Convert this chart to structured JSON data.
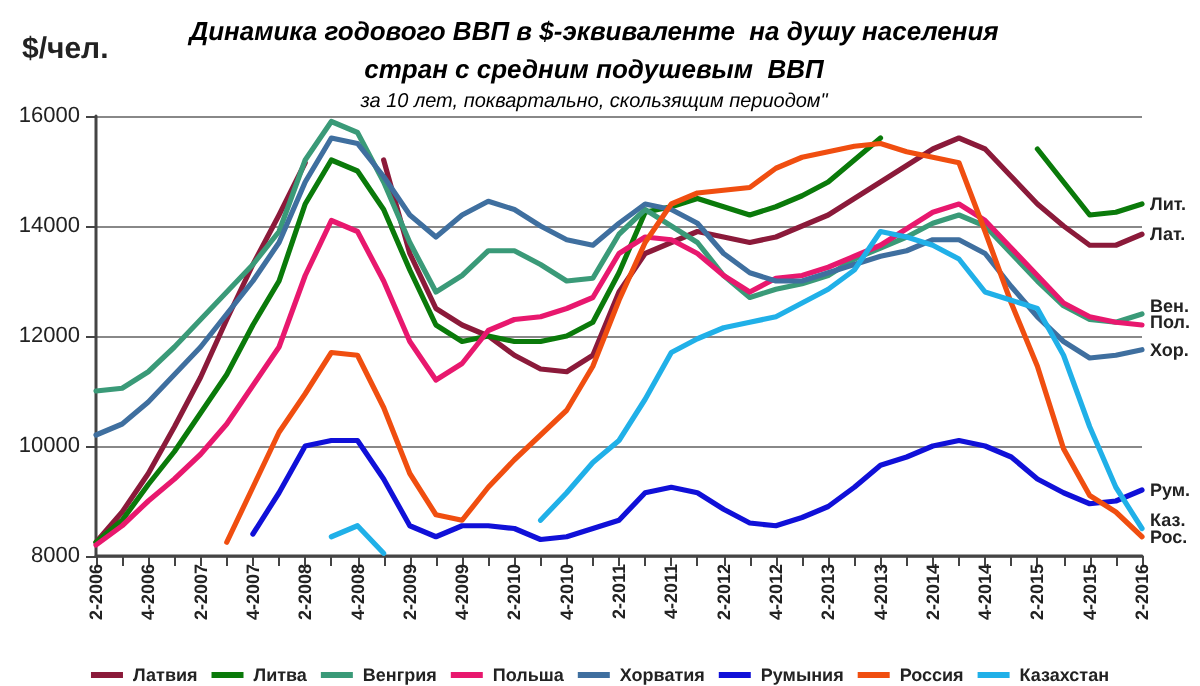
{
  "chart_data": {
    "type": "line",
    "title": "Динамика годового ВВП в $-эквиваленте  на душу населения\nстран с средним подушевым  ВВП",
    "subtitle": "за 10 лет, поквартально, скользящим периодом\"",
    "ylabel": "$/чел.",
    "categories": [
      "2-2006",
      null,
      "4-2006",
      null,
      "2-2007",
      null,
      "4-2007",
      null,
      "2-2008",
      null,
      "4-2008",
      null,
      "2-2009",
      null,
      "4-2009",
      null,
      "2-2010",
      null,
      "4-2010",
      null,
      "2-2011",
      null,
      "4-2011",
      null,
      "2-2012",
      null,
      "4-2012",
      null,
      "2-2013",
      null,
      "4-2013",
      null,
      "2-2014",
      null,
      "4-2014",
      null,
      "2-2015",
      null,
      "4-2015",
      null,
      "2-2016"
    ],
    "series": [
      {
        "name": "Латвия",
        "color": "#8b1a3a",
        "values": [
          8250,
          8800,
          9500,
          10350,
          11250,
          12300,
          13300,
          14200,
          15150,
          null,
          null,
          15200,
          13500,
          12500,
          12200,
          12000,
          11650,
          11400,
          11350,
          11650,
          12800,
          13500,
          13700,
          13900,
          13800,
          13700,
          13800,
          14000,
          14200,
          14500,
          14800,
          15100,
          15400,
          15600,
          15400,
          14900,
          14400,
          14000,
          13650,
          13650,
          13850
        ]
      },
      {
        "name": "Литва",
        "color": "#0a7a0a",
        "values": [
          8250,
          8650,
          9300,
          9900,
          10600,
          11300,
          12200,
          13000,
          14400,
          15200,
          15000,
          14300,
          13200,
          12200,
          11900,
          12000,
          11900,
          11900,
          12000,
          12250,
          13150,
          14250,
          14350,
          14500,
          14350,
          14200,
          14350,
          14550,
          14800,
          15200,
          15600,
          null,
          null,
          null,
          null,
          null,
          15400,
          14800,
          14200,
          14250,
          14400
        ]
      },
      {
        "name": "Венгрия",
        "color": "#3a9a78",
        "values": [
          11000,
          11050,
          11350,
          11800,
          12300,
          12800,
          13300,
          13900,
          15200,
          15900,
          15700,
          14800,
          13700,
          12800,
          13100,
          13550,
          13550,
          13300,
          13000,
          13050,
          13850,
          14300,
          14000,
          13700,
          13100,
          12700,
          12850,
          12950,
          13100,
          13400,
          13600,
          13800,
          14050,
          14200,
          14000,
          13500,
          13000,
          12550,
          12300,
          12250,
          12400
        ]
      },
      {
        "name": "Польша",
        "color": "#e8186e",
        "values": [
          8200,
          8550,
          9000,
          9400,
          9850,
          10400,
          11100,
          11800,
          13100,
          14100,
          13900,
          13000,
          11900,
          11200,
          11500,
          12100,
          12300,
          12350,
          12500,
          12700,
          13500,
          13800,
          13750,
          13500,
          13100,
          12800,
          13050,
          13100,
          13250,
          13450,
          13650,
          13950,
          14250,
          14400,
          14100,
          13600,
          13100,
          12600,
          12350,
          12250,
          12200
        ]
      },
      {
        "name": "Хорватия",
        "color": "#3f6f9f",
        "values": [
          10200,
          10400,
          10800,
          11300,
          11800,
          12400,
          13000,
          13700,
          14800,
          15600,
          15500,
          14900,
          14200,
          13800,
          14200,
          14450,
          14300,
          14000,
          13750,
          13650,
          14050,
          14400,
          14300,
          14050,
          13500,
          13150,
          13000,
          13000,
          13150,
          13300,
          13450,
          13550,
          13750,
          13750,
          13500,
          12900,
          12350,
          11900,
          11600,
          11650,
          11750
        ]
      },
      {
        "name": "Румыния",
        "color": "#1010d8",
        "values": [
          null,
          null,
          null,
          null,
          null,
          null,
          8400,
          9150,
          10000,
          10100,
          10100,
          9400,
          8550,
          8350,
          8550,
          8550,
          8500,
          8300,
          8350,
          8500,
          8650,
          9150,
          9250,
          9150,
          8850,
          8600,
          8550,
          8700,
          8900,
          9250,
          9650,
          9800,
          10000,
          10100,
          10000,
          9800,
          9400,
          9150,
          8950,
          9000,
          9200
        ]
      },
      {
        "name": "Россия",
        "color": "#f04e10",
        "values": [
          null,
          null,
          null,
          null,
          null,
          8250,
          9250,
          10250,
          10950,
          11700,
          11650,
          10700,
          9500,
          8750,
          8650,
          9250,
          9750,
          10200,
          10650,
          11450,
          12650,
          13700,
          14400,
          14600,
          14650,
          14700,
          15050,
          15250,
          15350,
          15450,
          15500,
          15350,
          15250,
          15150,
          13900,
          12600,
          11450,
          9950,
          9100,
          8800,
          8350
        ]
      },
      {
        "name": "Казахстан",
        "color": "#20b0e8",
        "values": [
          null,
          null,
          null,
          null,
          null,
          null,
          null,
          null,
          null,
          8350,
          8550,
          8050,
          null,
          null,
          null,
          null,
          null,
          8650,
          9150,
          9700,
          10100,
          10850,
          11700,
          11950,
          12150,
          12250,
          12350,
          12600,
          12850,
          13200,
          13900,
          13800,
          13650,
          13400,
          12800,
          12650,
          12500,
          11650,
          10350,
          9250,
          8500
        ]
      }
    ],
    "ylim": [
      8000,
      16000
    ],
    "yticks": [
      8000,
      10000,
      12000,
      14000,
      16000
    ],
    "grid": "y",
    "legend": "bottom",
    "annotations": [
      {
        "text": "Лит.",
        "x": "2-2016",
        "y": 14400
      },
      {
        "text": "Лат.",
        "x": "2-2016",
        "y": 13850
      },
      {
        "text": "Вен.",
        "x": "2-2016",
        "y": 12550
      },
      {
        "text": "Пол.",
        "x": "2-2016",
        "y": 12250
      },
      {
        "text": "Хор.",
        "x": "2-2016",
        "y": 11750
      },
      {
        "text": "Рум.",
        "x": "2-2016",
        "y": 9200
      },
      {
        "text": "Каз.",
        "x": "2-2016",
        "y": 8650
      },
      {
        "text": "Рос.",
        "x": "2-2016",
        "y": 8350
      }
    ]
  }
}
